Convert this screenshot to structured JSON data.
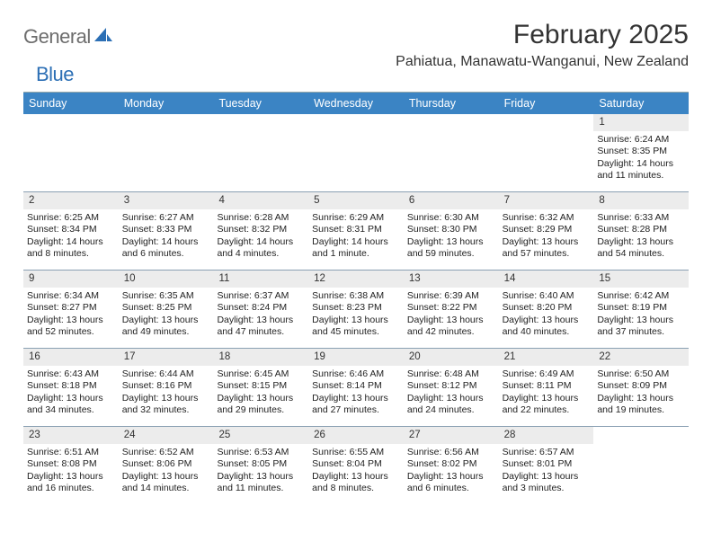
{
  "brand": {
    "part1": "General",
    "part2": "Blue"
  },
  "title": "February 2025",
  "location": "Pahiatua, Manawatu-Wanganui, New Zealand",
  "colors": {
    "header_bar": "#3b84c4",
    "day_num_bg": "#ececec",
    "rule": "#8aa0b3",
    "logo_gray": "#6d6d6d",
    "logo_blue": "#2c6fb5"
  },
  "days_of_week": [
    "Sunday",
    "Monday",
    "Tuesday",
    "Wednesday",
    "Thursday",
    "Friday",
    "Saturday"
  ],
  "weeks": [
    [
      {
        "n": "",
        "empty": true
      },
      {
        "n": "",
        "empty": true
      },
      {
        "n": "",
        "empty": true
      },
      {
        "n": "",
        "empty": true
      },
      {
        "n": "",
        "empty": true
      },
      {
        "n": "",
        "empty": true
      },
      {
        "n": "1",
        "sunrise": "Sunrise: 6:24 AM",
        "sunset": "Sunset: 8:35 PM",
        "daylight": "Daylight: 14 hours and 11 minutes."
      }
    ],
    [
      {
        "n": "2",
        "sunrise": "Sunrise: 6:25 AM",
        "sunset": "Sunset: 8:34 PM",
        "daylight": "Daylight: 14 hours and 8 minutes."
      },
      {
        "n": "3",
        "sunrise": "Sunrise: 6:27 AM",
        "sunset": "Sunset: 8:33 PM",
        "daylight": "Daylight: 14 hours and 6 minutes."
      },
      {
        "n": "4",
        "sunrise": "Sunrise: 6:28 AM",
        "sunset": "Sunset: 8:32 PM",
        "daylight": "Daylight: 14 hours and 4 minutes."
      },
      {
        "n": "5",
        "sunrise": "Sunrise: 6:29 AM",
        "sunset": "Sunset: 8:31 PM",
        "daylight": "Daylight: 14 hours and 1 minute."
      },
      {
        "n": "6",
        "sunrise": "Sunrise: 6:30 AM",
        "sunset": "Sunset: 8:30 PM",
        "daylight": "Daylight: 13 hours and 59 minutes."
      },
      {
        "n": "7",
        "sunrise": "Sunrise: 6:32 AM",
        "sunset": "Sunset: 8:29 PM",
        "daylight": "Daylight: 13 hours and 57 minutes."
      },
      {
        "n": "8",
        "sunrise": "Sunrise: 6:33 AM",
        "sunset": "Sunset: 8:28 PM",
        "daylight": "Daylight: 13 hours and 54 minutes."
      }
    ],
    [
      {
        "n": "9",
        "sunrise": "Sunrise: 6:34 AM",
        "sunset": "Sunset: 8:27 PM",
        "daylight": "Daylight: 13 hours and 52 minutes."
      },
      {
        "n": "10",
        "sunrise": "Sunrise: 6:35 AM",
        "sunset": "Sunset: 8:25 PM",
        "daylight": "Daylight: 13 hours and 49 minutes."
      },
      {
        "n": "11",
        "sunrise": "Sunrise: 6:37 AM",
        "sunset": "Sunset: 8:24 PM",
        "daylight": "Daylight: 13 hours and 47 minutes."
      },
      {
        "n": "12",
        "sunrise": "Sunrise: 6:38 AM",
        "sunset": "Sunset: 8:23 PM",
        "daylight": "Daylight: 13 hours and 45 minutes."
      },
      {
        "n": "13",
        "sunrise": "Sunrise: 6:39 AM",
        "sunset": "Sunset: 8:22 PM",
        "daylight": "Daylight: 13 hours and 42 minutes."
      },
      {
        "n": "14",
        "sunrise": "Sunrise: 6:40 AM",
        "sunset": "Sunset: 8:20 PM",
        "daylight": "Daylight: 13 hours and 40 minutes."
      },
      {
        "n": "15",
        "sunrise": "Sunrise: 6:42 AM",
        "sunset": "Sunset: 8:19 PM",
        "daylight": "Daylight: 13 hours and 37 minutes."
      }
    ],
    [
      {
        "n": "16",
        "sunrise": "Sunrise: 6:43 AM",
        "sunset": "Sunset: 8:18 PM",
        "daylight": "Daylight: 13 hours and 34 minutes."
      },
      {
        "n": "17",
        "sunrise": "Sunrise: 6:44 AM",
        "sunset": "Sunset: 8:16 PM",
        "daylight": "Daylight: 13 hours and 32 minutes."
      },
      {
        "n": "18",
        "sunrise": "Sunrise: 6:45 AM",
        "sunset": "Sunset: 8:15 PM",
        "daylight": "Daylight: 13 hours and 29 minutes."
      },
      {
        "n": "19",
        "sunrise": "Sunrise: 6:46 AM",
        "sunset": "Sunset: 8:14 PM",
        "daylight": "Daylight: 13 hours and 27 minutes."
      },
      {
        "n": "20",
        "sunrise": "Sunrise: 6:48 AM",
        "sunset": "Sunset: 8:12 PM",
        "daylight": "Daylight: 13 hours and 24 minutes."
      },
      {
        "n": "21",
        "sunrise": "Sunrise: 6:49 AM",
        "sunset": "Sunset: 8:11 PM",
        "daylight": "Daylight: 13 hours and 22 minutes."
      },
      {
        "n": "22",
        "sunrise": "Sunrise: 6:50 AM",
        "sunset": "Sunset: 8:09 PM",
        "daylight": "Daylight: 13 hours and 19 minutes."
      }
    ],
    [
      {
        "n": "23",
        "sunrise": "Sunrise: 6:51 AM",
        "sunset": "Sunset: 8:08 PM",
        "daylight": "Daylight: 13 hours and 16 minutes."
      },
      {
        "n": "24",
        "sunrise": "Sunrise: 6:52 AM",
        "sunset": "Sunset: 8:06 PM",
        "daylight": "Daylight: 13 hours and 14 minutes."
      },
      {
        "n": "25",
        "sunrise": "Sunrise: 6:53 AM",
        "sunset": "Sunset: 8:05 PM",
        "daylight": "Daylight: 13 hours and 11 minutes."
      },
      {
        "n": "26",
        "sunrise": "Sunrise: 6:55 AM",
        "sunset": "Sunset: 8:04 PM",
        "daylight": "Daylight: 13 hours and 8 minutes."
      },
      {
        "n": "27",
        "sunrise": "Sunrise: 6:56 AM",
        "sunset": "Sunset: 8:02 PM",
        "daylight": "Daylight: 13 hours and 6 minutes."
      },
      {
        "n": "28",
        "sunrise": "Sunrise: 6:57 AM",
        "sunset": "Sunset: 8:01 PM",
        "daylight": "Daylight: 13 hours and 3 minutes."
      },
      {
        "n": "",
        "empty": true
      }
    ]
  ]
}
